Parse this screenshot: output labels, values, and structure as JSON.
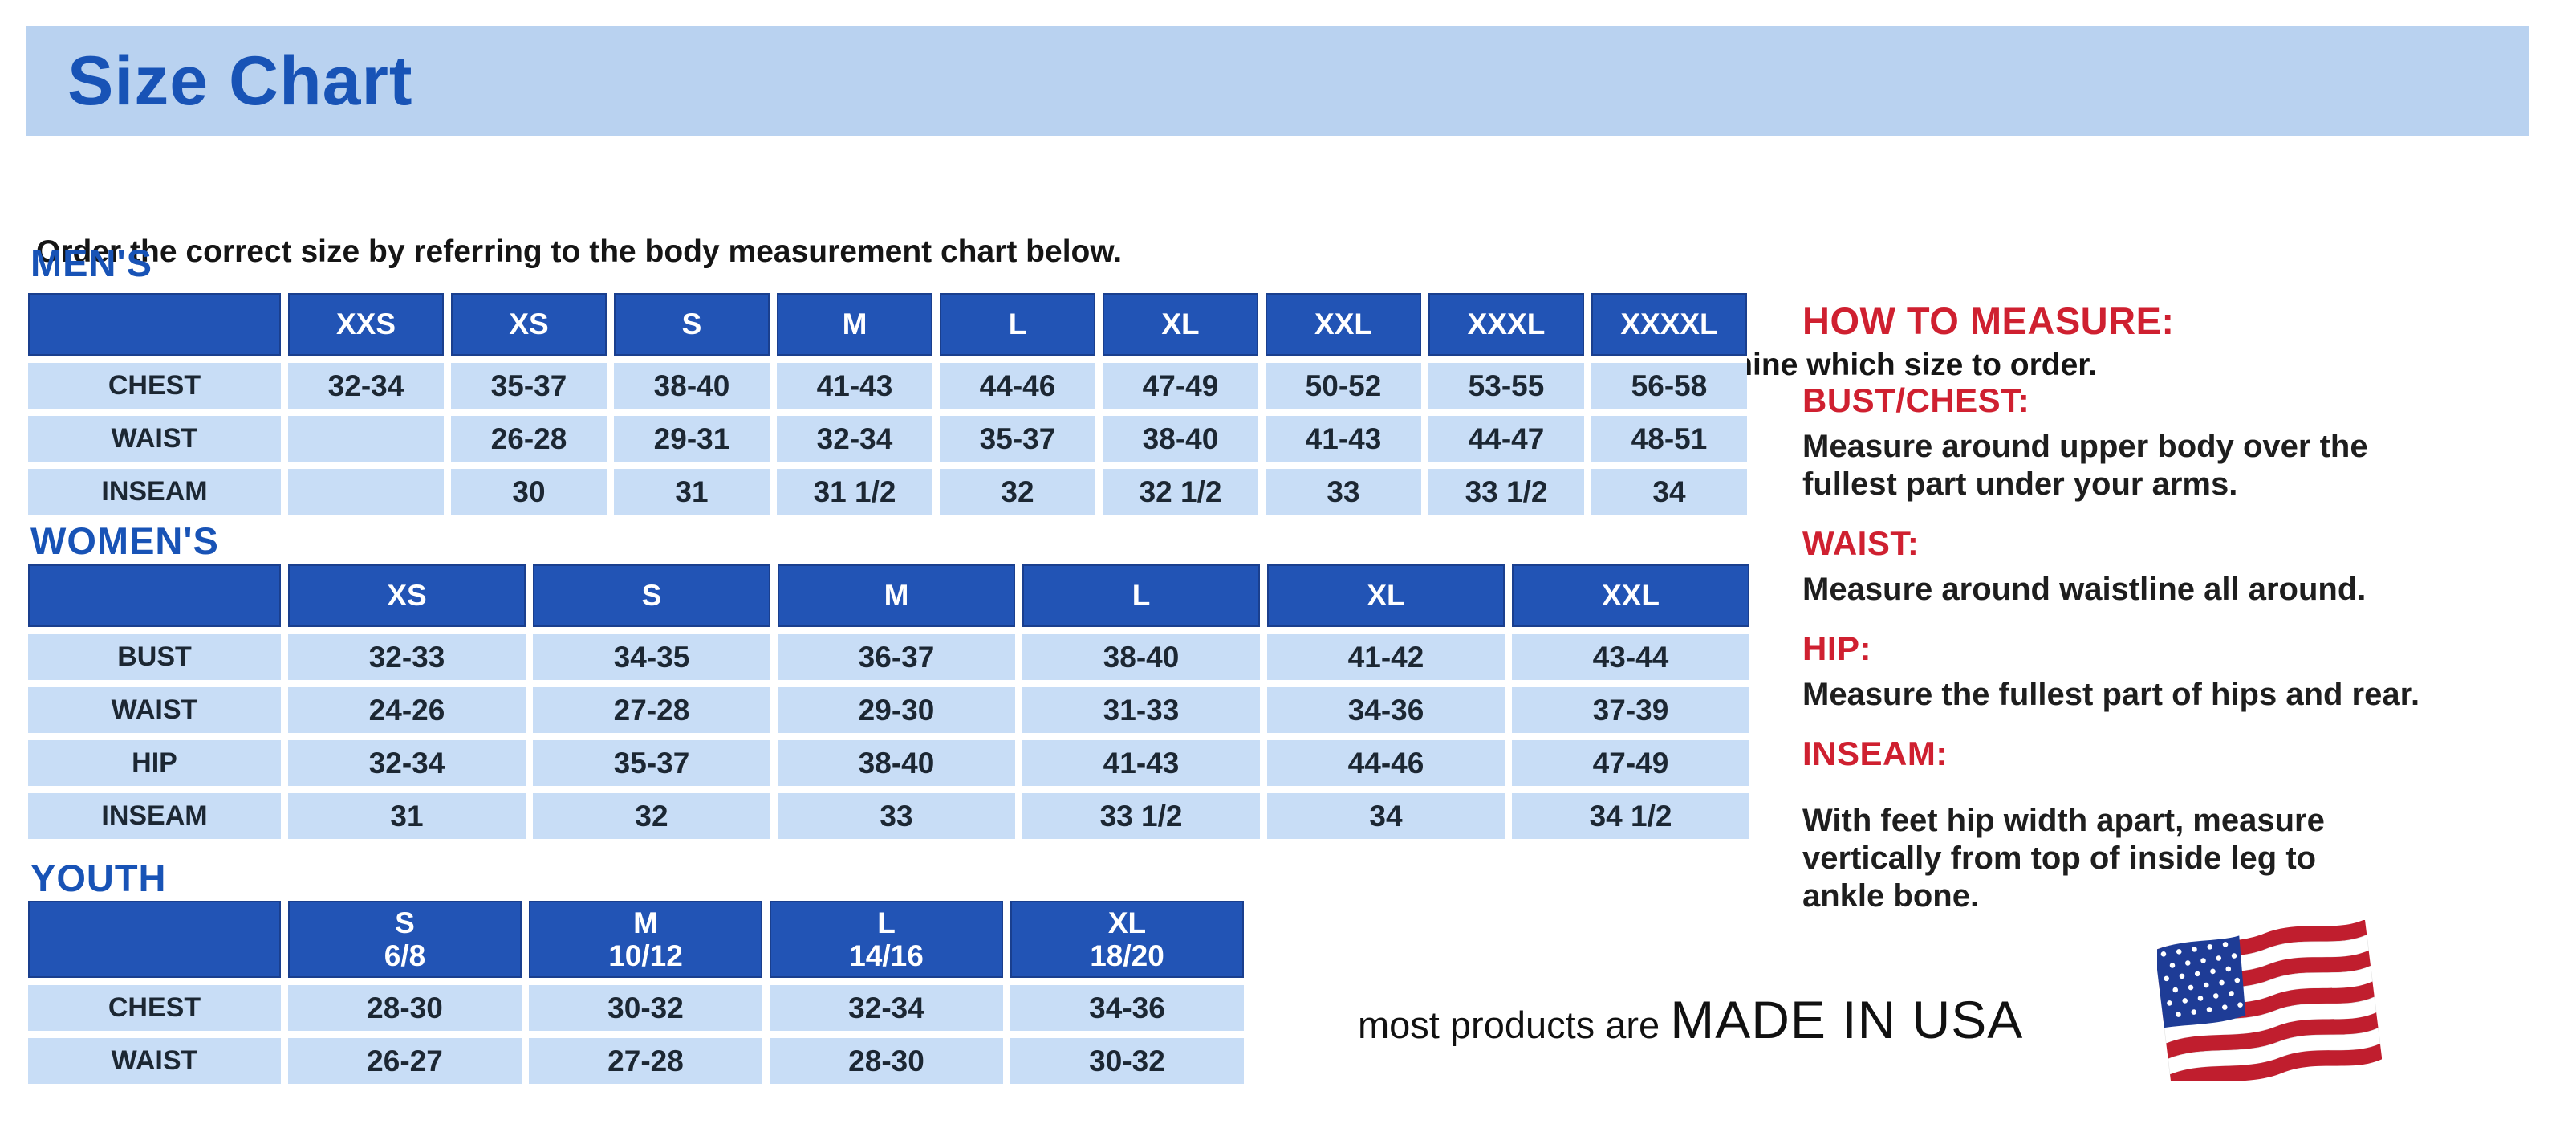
{
  "title": "Size Chart",
  "intro": {
    "line1": "Order the correct size by referring to the body measurement chart below.",
    "line2": "Measurements shown on size chart are body measurements.  Find your body measurements on the chart to determine which size to order."
  },
  "colors": {
    "banner_blue": "#b9d2f0",
    "header_blue": "#2254b5",
    "cell_blue": "#c8ddf6",
    "heading_blue": "#1853b6",
    "red": "#cf2030"
  },
  "tables": {
    "mens": {
      "heading": "MEN'S",
      "columns": [
        "XXS",
        "XS",
        "S",
        "M",
        "L",
        "XL",
        "XXL",
        "XXXL",
        "XXXXL"
      ],
      "rows": [
        {
          "label": "CHEST",
          "values": [
            "32-34",
            "35-37",
            "38-40",
            "41-43",
            "44-46",
            "47-49",
            "50-52",
            "53-55",
            "56-58"
          ]
        },
        {
          "label": "WAIST",
          "values": [
            "",
            "26-28",
            "29-31",
            "32-34",
            "35-37",
            "38-40",
            "41-43",
            "44-47",
            "48-51"
          ]
        },
        {
          "label": "INSEAM",
          "values": [
            "",
            "30",
            "31",
            "31 1/2",
            "32",
            "32 1/2",
            "33",
            "33 1/2",
            "34"
          ]
        }
      ]
    },
    "womens": {
      "heading": "WOMEN'S",
      "columns": [
        "XS",
        "S",
        "M",
        "L",
        "XL",
        "XXL"
      ],
      "rows": [
        {
          "label": "BUST",
          "values": [
            "32-33",
            "34-35",
            "36-37",
            "38-40",
            "41-42",
            "43-44"
          ]
        },
        {
          "label": "WAIST",
          "values": [
            "24-26",
            "27-28",
            "29-30",
            "31-33",
            "34-36",
            "37-39"
          ]
        },
        {
          "label": "HIP",
          "values": [
            "32-34",
            "35-37",
            "38-40",
            "41-43",
            "44-46",
            "47-49"
          ]
        },
        {
          "label": "INSEAM",
          "values": [
            "31",
            "32",
            "33",
            "33 1/2",
            "34",
            "34 1/2"
          ]
        }
      ]
    },
    "youth": {
      "heading": "YOUTH",
      "columns": [
        "S\n6/8",
        "M\n10/12",
        "L\n14/16",
        "XL\n18/20"
      ],
      "rows": [
        {
          "label": "CHEST",
          "values": [
            "28-30",
            "30-32",
            "32-34",
            "34-36"
          ]
        },
        {
          "label": "WAIST",
          "values": [
            "26-27",
            "27-28",
            "28-30",
            "30-32"
          ]
        }
      ]
    }
  },
  "how_to_measure": {
    "heading": "HOW TO MEASURE:",
    "items": [
      {
        "label": "BUST/CHEST:",
        "text": "Measure around upper body over the\nfullest part under your arms."
      },
      {
        "label": "WAIST:",
        "text": "Measure around waistline all around."
      },
      {
        "label": "HIP:",
        "text": "Measure the fullest part of hips and rear."
      },
      {
        "label": "INSEAM:",
        "text": "With feet hip width apart, measure\nvertically from top of inside leg to\nankle bone."
      }
    ]
  },
  "footer": {
    "prefix": "most products are ",
    "made_in": "MADE IN USA",
    "flag": "us-flag"
  }
}
